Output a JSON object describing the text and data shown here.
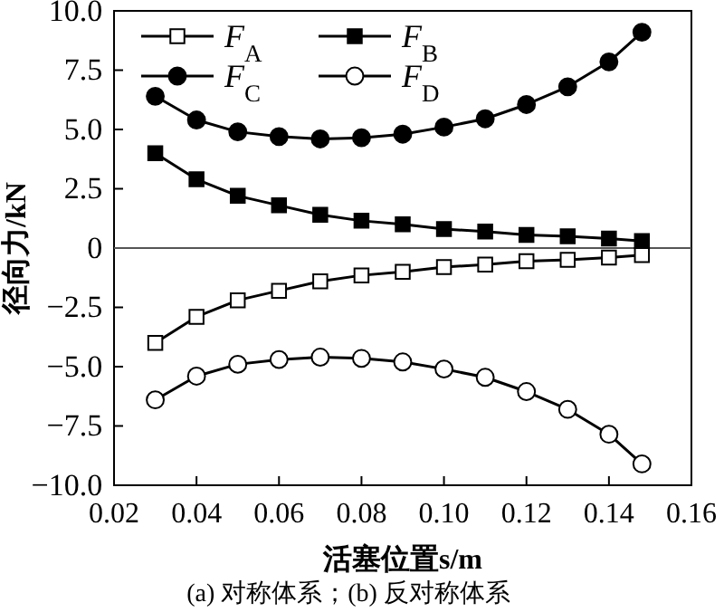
{
  "chart_data": {
    "type": "line",
    "xlabel": "活塞位置s/m",
    "ylabel": "径向力/kN",
    "annotations": [
      "(a) 对称体系；(b) 反对称体系"
    ],
    "x": [
      0.03,
      0.04,
      0.05,
      0.06,
      0.07,
      0.08,
      0.09,
      0.1,
      0.11,
      0.12,
      0.13,
      0.14,
      0.148
    ],
    "series": [
      {
        "name": "F$_{A}$",
        "color": "#000000",
        "marker": "square",
        "values": [
          -4.0,
          -2.9,
          -2.2,
          -1.8,
          -1.4,
          -1.15,
          -1.0,
          -0.8,
          -0.7,
          -0.55,
          -0.5,
          -0.4,
          -0.3
        ]
      },
      {
        "name": "F$_{B}$",
        "color": "#000000",
        "marker": "square",
        "values": [
          4.0,
          2.9,
          2.2,
          1.8,
          1.4,
          1.15,
          1.0,
          0.8,
          0.7,
          0.55,
          0.5,
          0.4,
          0.3
        ]
      },
      {
        "name": "F$_{C}$",
        "color": "#000000",
        "marker": "circle",
        "values": [
          6.4,
          5.4,
          4.9,
          4.7,
          4.6,
          4.65,
          4.8,
          5.1,
          5.45,
          6.05,
          6.8,
          7.85,
          9.1
        ]
      },
      {
        "name": "F$_{D}$",
        "color": "#000000",
        "marker": "circle",
        "values": [
          -6.4,
          -5.4,
          -4.9,
          -4.7,
          -4.6,
          -4.65,
          -4.8,
          -5.1,
          -5.45,
          -6.05,
          -6.8,
          -7.85,
          -9.1
        ]
      }
    ],
    "xlim": [
      0.02,
      0.16
    ],
    "ylim": [
      -10,
      10
    ],
    "xticks": [
      {
        "value": 0.02,
        "label": "0.02"
      },
      {
        "value": 0.04,
        "label": "0.04"
      },
      {
        "value": 0.06,
        "label": "0.06"
      },
      {
        "value": 0.08,
        "label": "0.08"
      },
      {
        "value": 0.1,
        "label": "0.10"
      },
      {
        "value": 0.12,
        "label": "0.12"
      },
      {
        "value": 0.14,
        "label": "0.14"
      },
      {
        "value": 0.16,
        "label": "0.16"
      }
    ],
    "yticks": [
      {
        "value": -10,
        "label": "−10.0"
      },
      {
        "value": -7.5,
        "label": "−7.5"
      },
      {
        "value": -5,
        "label": "−5.0"
      },
      {
        "value": -2.5,
        "label": "−2.5"
      },
      0,
      2.5,
      {
        "value": 5,
        "label": "5.0"
      },
      {
        "value": 7.5,
        "label": "7.5"
      },
      {
        "value": 10,
        "label": "10.0"
      }
    ],
    "ref_lines": [
      {
        "axis": "y",
        "value": 0,
        "color": "#555555"
      }
    ],
    "grid": false,
    "legend": "top",
    "line_style": "solid"
  }
}
